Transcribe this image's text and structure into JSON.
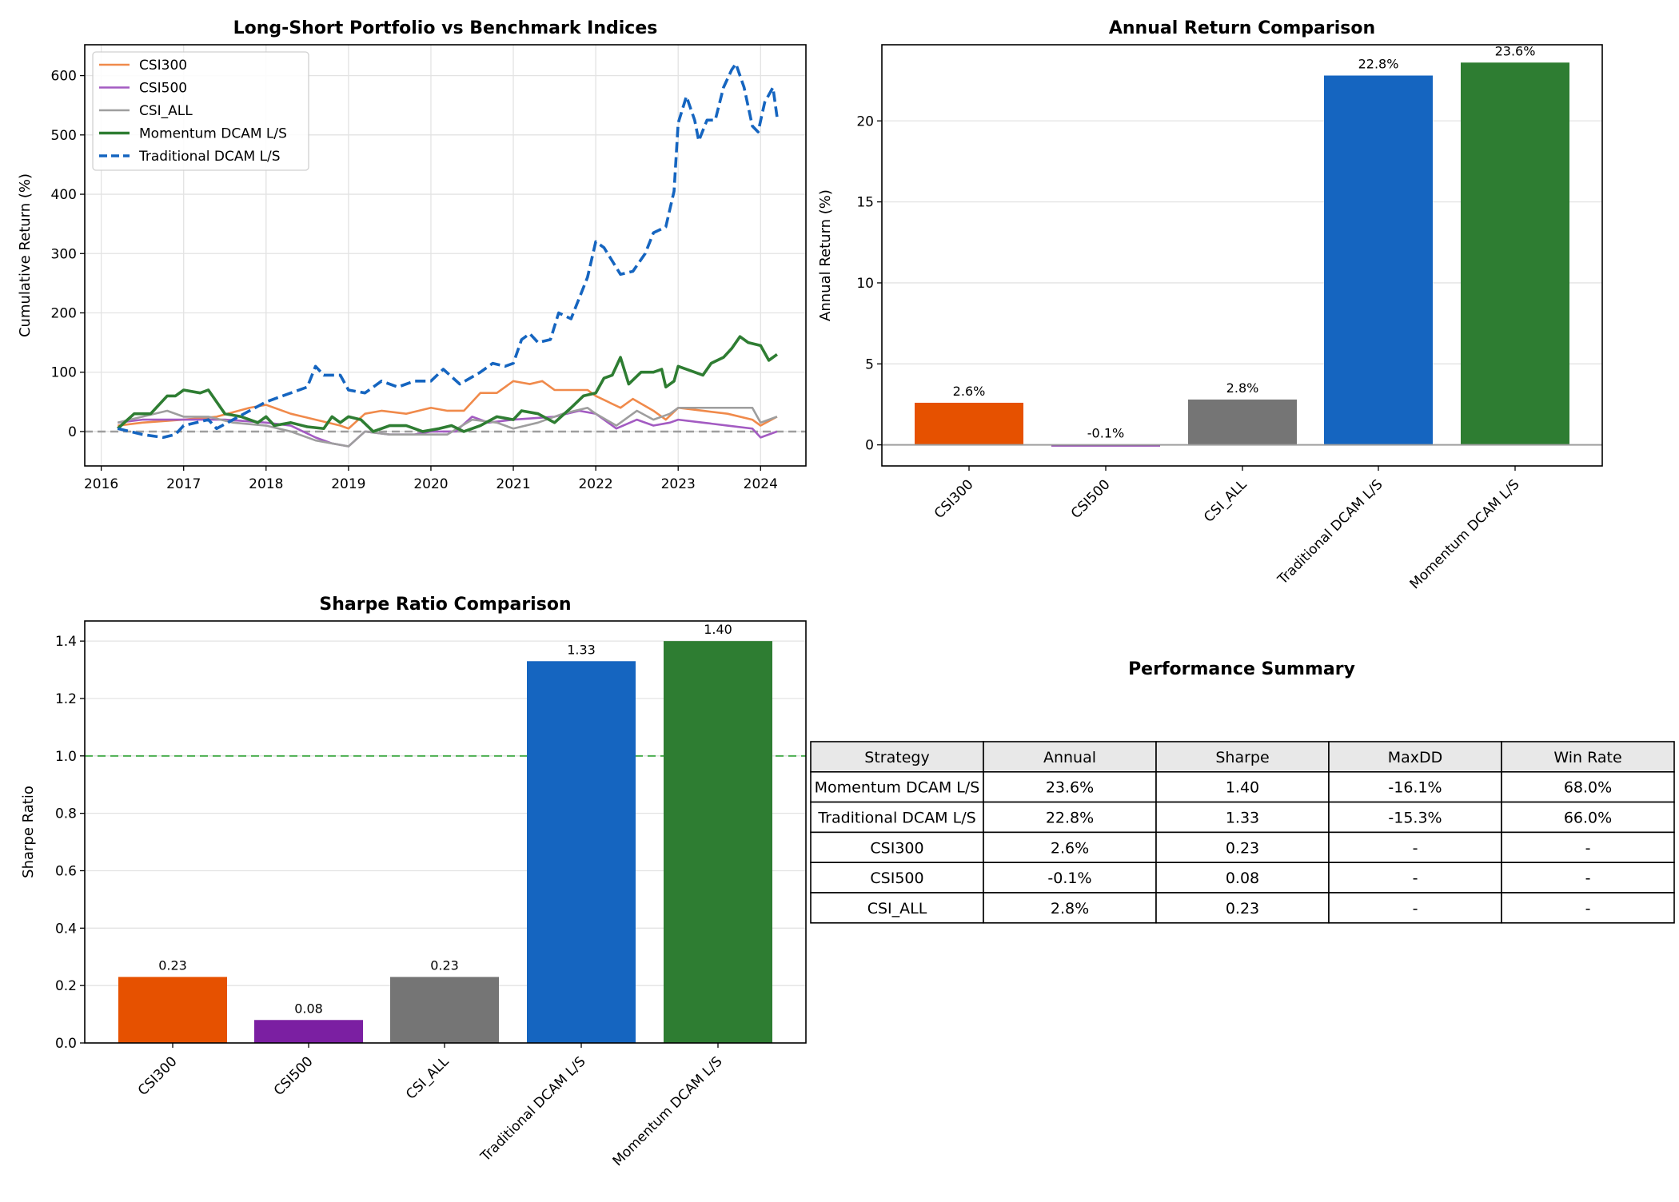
{
  "chart_data": [
    {
      "type": "line",
      "title": "Long-Short Portfolio vs Benchmark Indices",
      "xlabel": "",
      "ylabel": "Cumulative Return (%)",
      "xlim": [
        2015.8,
        2024.55
      ],
      "ylim": [
        -58,
        652
      ],
      "xticks": [
        "2016",
        "2017",
        "2018",
        "2019",
        "2020",
        "2021",
        "2022",
        "2023",
        "2024"
      ],
      "yticks": [
        "0",
        "100",
        "200",
        "300",
        "400",
        "500",
        "600"
      ],
      "grid": true,
      "legend": "top-left",
      "reference_line": {
        "y": 0,
        "style": "dashed",
        "color": "#9e9e9e"
      },
      "series": [
        {
          "name": "CSI300",
          "color": "#F08A4B",
          "style": "solid",
          "x": [
            2016.2,
            2016.5,
            2017.0,
            2017.4,
            2017.8,
            2018.0,
            2018.3,
            2018.6,
            2018.9,
            2019.0,
            2019.2,
            2019.4,
            2019.7,
            2020.0,
            2020.2,
            2020.4,
            2020.6,
            2020.8,
            2021.0,
            2021.2,
            2021.35,
            2021.5,
            2021.9,
            2022.0,
            2022.3,
            2022.45,
            2022.7,
            2022.85,
            2023.0,
            2023.3,
            2023.6,
            2023.9,
            2024.0,
            2024.2
          ],
          "y": [
            10,
            15,
            20,
            25,
            40,
            45,
            30,
            20,
            10,
            5,
            30,
            35,
            30,
            40,
            35,
            35,
            65,
            65,
            85,
            80,
            85,
            70,
            70,
            60,
            40,
            55,
            35,
            20,
            40,
            35,
            30,
            20,
            10,
            25
          ]
        },
        {
          "name": "CSI500",
          "color": "#A35BC2",
          "style": "solid",
          "x": [
            2016.2,
            2016.5,
            2017.0,
            2017.5,
            2018.0,
            2018.3,
            2018.6,
            2018.8,
            2019.0,
            2019.2,
            2019.5,
            2019.8,
            2020.0,
            2020.3,
            2020.5,
            2020.7,
            2021.0,
            2021.5,
            2021.8,
            2022.0,
            2022.25,
            2022.5,
            2022.7,
            2022.9,
            2023.0,
            2023.3,
            2023.6,
            2023.9,
            2024.0,
            2024.2
          ],
          "y": [
            15,
            20,
            20,
            20,
            15,
            10,
            -10,
            -20,
            -25,
            0,
            -5,
            -5,
            0,
            0,
            25,
            15,
            20,
            25,
            35,
            30,
            5,
            20,
            10,
            15,
            20,
            15,
            10,
            5,
            -10,
            0
          ]
        },
        {
          "name": "CSI_ALL",
          "color": "#9E9E9E",
          "style": "solid",
          "x": [
            2016.2,
            2016.5,
            2016.8,
            2017.0,
            2017.3,
            2017.6,
            2018.0,
            2018.3,
            2018.6,
            2018.8,
            2019.0,
            2019.2,
            2019.5,
            2019.9,
            2020.2,
            2020.5,
            2020.8,
            2021.0,
            2021.3,
            2021.6,
            2021.9,
            2022.0,
            2022.25,
            2022.5,
            2022.7,
            2022.9,
            2023.0,
            2023.3,
            2023.6,
            2023.9,
            2024.0,
            2024.2
          ],
          "y": [
            15,
            25,
            35,
            25,
            25,
            15,
            10,
            0,
            -15,
            -20,
            -25,
            0,
            -5,
            -5,
            -5,
            20,
            15,
            5,
            15,
            30,
            40,
            30,
            10,
            35,
            20,
            30,
            40,
            40,
            40,
            40,
            15,
            25
          ]
        },
        {
          "name": "Momentum DCAM L/S",
          "color": "#2E7D32",
          "style": "solid",
          "x": [
            2016.2,
            2016.4,
            2016.6,
            2016.8,
            2016.9,
            2017.0,
            2017.2,
            2017.3,
            2017.5,
            2017.7,
            2017.9,
            2018.0,
            2018.1,
            2018.3,
            2018.5,
            2018.7,
            2018.8,
            2018.9,
            2019.0,
            2019.15,
            2019.3,
            2019.5,
            2019.7,
            2019.9,
            2020.1,
            2020.25,
            2020.4,
            2020.6,
            2020.8,
            2021.0,
            2021.1,
            2021.3,
            2021.5,
            2021.7,
            2021.85,
            2022.0,
            2022.1,
            2022.2,
            2022.3,
            2022.4,
            2022.55,
            2022.7,
            2022.8,
            2022.85,
            2022.95,
            2023.0,
            2023.2,
            2023.3,
            2023.4,
            2023.55,
            2023.65,
            2023.75,
            2023.85,
            2024.0,
            2024.1,
            2024.2
          ],
          "y": [
            5,
            30,
            30,
            60,
            60,
            70,
            65,
            70,
            30,
            25,
            15,
            25,
            10,
            15,
            8,
            5,
            25,
            15,
            25,
            20,
            0,
            10,
            10,
            0,
            5,
            10,
            0,
            10,
            25,
            20,
            35,
            30,
            15,
            40,
            60,
            65,
            90,
            95,
            125,
            80,
            100,
            100,
            105,
            75,
            85,
            110,
            100,
            95,
            115,
            125,
            140,
            160,
            150,
            145,
            120,
            130
          ]
        },
        {
          "name": "Traditional DCAM L/S",
          "color": "#1565C0",
          "style": "dashed",
          "x": [
            2016.2,
            2016.5,
            2016.75,
            2016.9,
            2017.0,
            2017.3,
            2017.4,
            2017.6,
            2017.8,
            2018.0,
            2018.3,
            2018.5,
            2018.6,
            2018.7,
            2018.9,
            2019.0,
            2019.2,
            2019.4,
            2019.6,
            2019.8,
            2020.0,
            2020.15,
            2020.35,
            2020.6,
            2020.75,
            2020.9,
            2021.0,
            2021.1,
            2021.2,
            2021.3,
            2021.45,
            2021.55,
            2021.7,
            2021.8,
            2021.9,
            2022.0,
            2022.1,
            2022.3,
            2022.45,
            2022.6,
            2022.7,
            2022.85,
            2022.95,
            2023.0,
            2023.1,
            2023.2,
            2023.25,
            2023.35,
            2023.45,
            2023.55,
            2023.65,
            2023.7,
            2023.8,
            2023.9,
            2023.97,
            2024.05,
            2024.15,
            2024.2
          ],
          "y": [
            5,
            -5,
            -10,
            -5,
            10,
            20,
            5,
            20,
            35,
            50,
            65,
            75,
            110,
            95,
            95,
            70,
            65,
            85,
            75,
            85,
            85,
            105,
            80,
            100,
            115,
            110,
            115,
            155,
            165,
            150,
            155,
            200,
            190,
            225,
            260,
            320,
            310,
            265,
            270,
            300,
            335,
            345,
            405,
            520,
            565,
            525,
            490,
            525,
            525,
            580,
            610,
            620,
            580,
            515,
            505,
            555,
            580,
            530
          ]
        }
      ]
    },
    {
      "type": "bar",
      "title": "Annual Return Comparison",
      "xlabel": "",
      "ylabel": "Annual Return (%)",
      "ylim": [
        -1.3,
        24.7
      ],
      "yticks": [
        "0",
        "5",
        "10",
        "15",
        "20"
      ],
      "grid": true,
      "categories": [
        "CSI300",
        "CSI500",
        "CSI_ALL",
        "Traditional DCAM L/S",
        "Momentum DCAM L/S"
      ],
      "values": [
        2.6,
        -0.1,
        2.8,
        22.8,
        23.6
      ],
      "data_labels": [
        "2.6%",
        "-0.1%",
        "2.8%",
        "22.8%",
        "23.6%"
      ],
      "colors": [
        "#E65100",
        "#7B1FA2",
        "#757575",
        "#1565C0",
        "#2E7D32"
      ]
    },
    {
      "type": "bar",
      "title": "Sharpe Ratio Comparison",
      "xlabel": "",
      "ylabel": "Sharpe Ratio",
      "ylim": [
        0,
        1.47
      ],
      "yticks": [
        "0.0",
        "0.2",
        "0.4",
        "0.6",
        "0.8",
        "1.0",
        "1.2",
        "1.4"
      ],
      "grid": true,
      "reference_line": {
        "y": 1.0,
        "style": "dashed",
        "color": "#4CAF50"
      },
      "categories": [
        "CSI300",
        "CSI500",
        "CSI_ALL",
        "Traditional DCAM L/S",
        "Momentum DCAM L/S"
      ],
      "values": [
        0.23,
        0.08,
        0.23,
        1.33,
        1.4
      ],
      "data_labels": [
        "0.23",
        "0.08",
        "0.23",
        "1.33",
        "1.40"
      ],
      "colors": [
        "#E65100",
        "#7B1FA2",
        "#757575",
        "#1565C0",
        "#2E7D32"
      ]
    },
    {
      "type": "table",
      "title": "Performance Summary",
      "columns": [
        "Strategy",
        "Annual",
        "Sharpe",
        "MaxDD",
        "Win Rate"
      ],
      "rows": [
        [
          "Momentum DCAM L/S",
          "23.6%",
          "1.40",
          "-16.1%",
          "68.0%"
        ],
        [
          "Traditional DCAM L/S",
          "22.8%",
          "1.33",
          "-15.3%",
          "66.0%"
        ],
        [
          "CSI300",
          "2.6%",
          "0.23",
          "-",
          "-"
        ],
        [
          "CSI500",
          "-0.1%",
          "0.08",
          "-",
          "-"
        ],
        [
          "CSI_ALL",
          "2.8%",
          "0.23",
          "-",
          "-"
        ]
      ]
    }
  ]
}
